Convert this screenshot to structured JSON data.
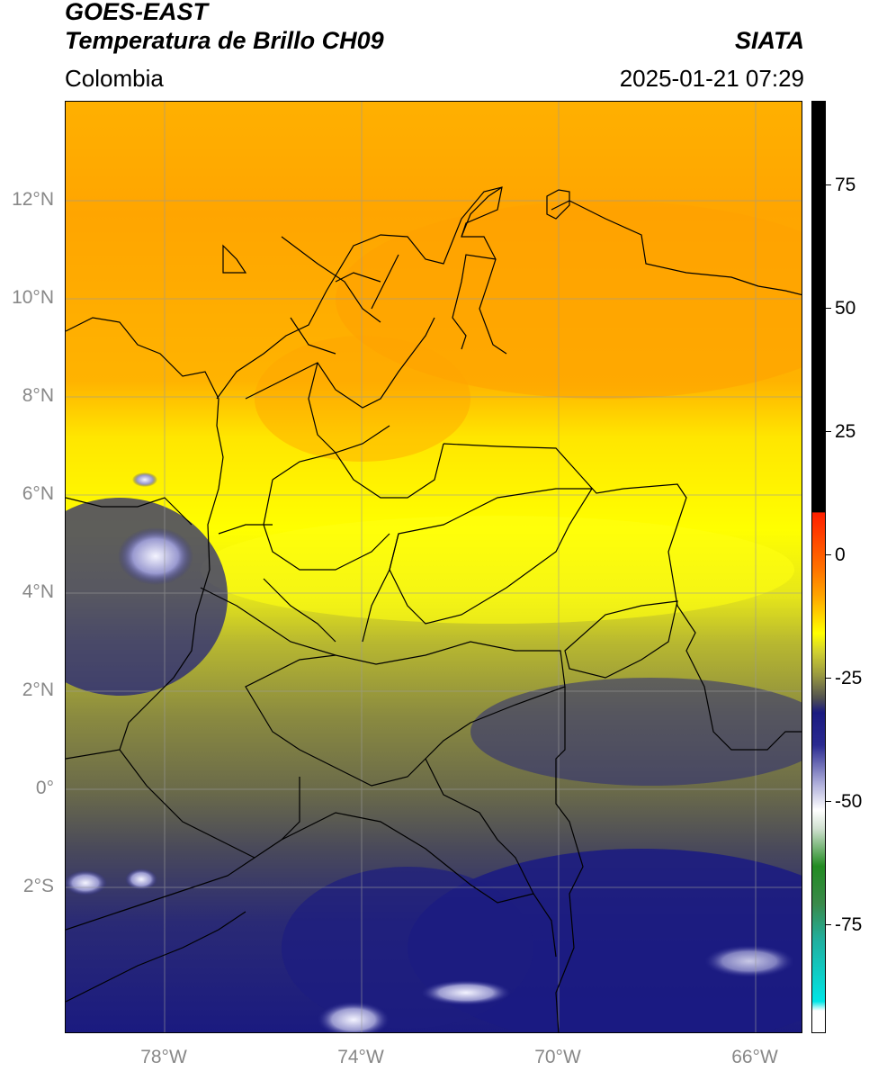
{
  "header": {
    "title_line1": "GOES-EAST",
    "title_line2": "Temperatura de Brillo CH09",
    "region": "Colombia",
    "agency": "SIATA",
    "datetime": "2025-01-21 07:29"
  },
  "map": {
    "lat_labels": [
      "12°N",
      "10°N",
      "8°N",
      "6°N",
      "4°N",
      "2°N",
      "0°",
      "2°S"
    ],
    "lon_labels": [
      "78°W",
      "74°W",
      "70°W",
      "66°W"
    ],
    "colors": {
      "warm_orange": "#ffa500",
      "yellow": "#ffff00",
      "olive": "#a8a830",
      "gray_olive": "#5e5e50",
      "navy": "#1a1a80",
      "white_cloud": "#eeeeff",
      "border": "#000000"
    }
  },
  "colorbar": {
    "labels": [
      "75",
      "50",
      "25",
      "0",
      "-25",
      "-50",
      "-75"
    ],
    "colors": [
      "#000000",
      "#ff0000",
      "#ffa500",
      "#ffff00",
      "#999933",
      "#404040",
      "#1a1a80",
      "#ffffff",
      "#228b22",
      "#00e5e5"
    ]
  }
}
